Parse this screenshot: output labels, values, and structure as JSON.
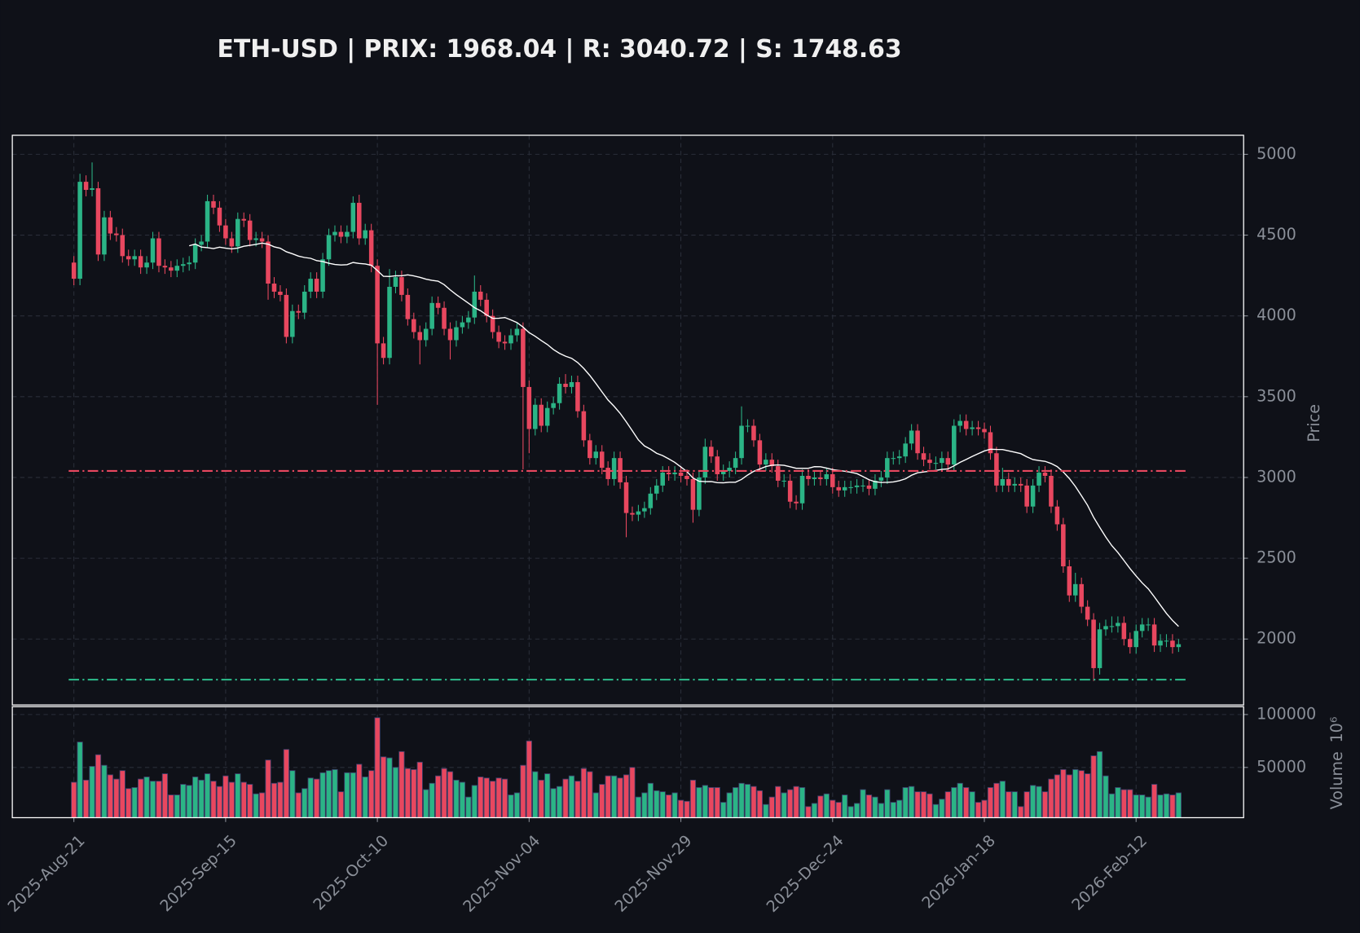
{
  "chart_data": {
    "type": "candlestick",
    "title": "ETH-USD | PRIX: 1968.04 | R: 3040.72 | S: 1748.63",
    "y_label": "Price",
    "volume_label": "Volume",
    "volume_offset": "10⁶",
    "up_color": "#2bb486",
    "down_color": "#e8475f",
    "ma_color": "#ffffff",
    "grid": true,
    "resistance": 3040.72,
    "resistance_color": "#e8475f",
    "support": 1748.63,
    "support_color": "#2bb486",
    "ylim": [
      1592,
      5118
    ],
    "yticks": [
      2000,
      2500,
      3000,
      3500,
      4000,
      4500,
      5000
    ],
    "volume_ylim": [
      2500,
      107400
    ],
    "volume_yticks": [
      50000,
      100000
    ],
    "xticks": [
      {
        "value": "2025-08-21",
        "label": "2025-Aug-21"
      },
      {
        "value": "2025-09-15",
        "label": "2025-Sep-15"
      },
      {
        "value": "2025-10-10",
        "label": "2025-Oct-10"
      },
      {
        "value": "2025-11-04",
        "label": "2025-Nov-04"
      },
      {
        "value": "2025-11-29",
        "label": "2025-Nov-29"
      },
      {
        "value": "2025-12-24",
        "label": "2025-Dec-24"
      },
      {
        "value": "2026-01-18",
        "label": "2026-Jan-18"
      },
      {
        "value": "2026-02-12",
        "label": "2026-Feb-12"
      }
    ],
    "x": [
      "2025-08-21",
      "2025-08-22",
      "2025-08-23",
      "2025-08-24",
      "2025-08-25",
      "2025-08-26",
      "2025-08-27",
      "2025-08-28",
      "2025-08-29",
      "2025-08-30",
      "2025-08-31",
      "2025-09-01",
      "2025-09-02",
      "2025-09-03",
      "2025-09-04",
      "2025-09-05",
      "2025-09-06",
      "2025-09-07",
      "2025-09-08",
      "2025-09-09",
      "2025-09-10",
      "2025-09-11",
      "2025-09-12",
      "2025-09-13",
      "2025-09-14",
      "2025-09-15",
      "2025-09-16",
      "2025-09-17",
      "2025-09-18",
      "2025-09-19",
      "2025-09-20",
      "2025-09-21",
      "2025-09-22",
      "2025-09-23",
      "2025-09-24",
      "2025-09-25",
      "2025-09-26",
      "2025-09-27",
      "2025-09-28",
      "2025-09-29",
      "2025-09-30",
      "2025-10-01",
      "2025-10-02",
      "2025-10-03",
      "2025-10-04",
      "2025-10-05",
      "2025-10-06",
      "2025-10-07",
      "2025-10-08",
      "2025-10-09",
      "2025-10-10",
      "2025-10-11",
      "2025-10-12",
      "2025-10-13",
      "2025-10-14",
      "2025-10-15",
      "2025-10-16",
      "2025-10-17",
      "2025-10-18",
      "2025-10-19",
      "2025-10-20",
      "2025-10-21",
      "2025-10-22",
      "2025-10-23",
      "2025-10-24",
      "2025-10-25",
      "2025-10-26",
      "2025-10-27",
      "2025-10-28",
      "2025-10-29",
      "2025-10-30",
      "2025-10-31",
      "2025-11-01",
      "2025-11-02",
      "2025-11-03",
      "2025-11-04",
      "2025-11-05",
      "2025-11-06",
      "2025-11-07",
      "2025-11-08",
      "2025-11-09",
      "2025-11-10",
      "2025-11-11",
      "2025-11-12",
      "2025-11-13",
      "2025-11-14",
      "2025-11-15",
      "2025-11-16",
      "2025-11-17",
      "2025-11-18",
      "2025-11-19",
      "2025-11-20",
      "2025-11-21",
      "2025-11-22",
      "2025-11-23",
      "2025-11-24",
      "2025-11-25",
      "2025-11-26",
      "2025-11-27",
      "2025-11-28",
      "2025-11-29",
      "2025-11-30",
      "2025-12-01",
      "2025-12-02",
      "2025-12-03",
      "2025-12-04",
      "2025-12-05",
      "2025-12-06",
      "2025-12-07",
      "2025-12-08",
      "2025-12-09",
      "2025-12-10",
      "2025-12-11",
      "2025-12-12",
      "2025-12-13",
      "2025-12-14",
      "2025-12-15",
      "2025-12-16",
      "2025-12-17",
      "2025-12-18",
      "2025-12-19",
      "2025-12-20",
      "2025-12-21",
      "2025-12-22",
      "2025-12-23",
      "2025-12-24",
      "2025-12-25",
      "2025-12-26",
      "2025-12-27",
      "2025-12-28",
      "2025-12-29",
      "2025-12-30",
      "2025-12-31",
      "2026-01-01",
      "2026-01-02",
      "2026-01-03",
      "2026-01-04",
      "2026-01-05",
      "2026-01-06",
      "2026-01-07",
      "2026-01-08",
      "2026-01-09",
      "2026-01-10",
      "2026-01-11",
      "2026-01-12",
      "2026-01-13",
      "2026-01-14",
      "2026-01-15",
      "2026-01-16",
      "2026-01-17",
      "2026-01-18",
      "2026-01-19",
      "2026-01-20",
      "2026-01-21",
      "2026-01-22",
      "2026-01-23",
      "2026-01-24",
      "2026-01-25",
      "2026-01-26",
      "2026-01-27",
      "2026-01-28",
      "2026-01-29",
      "2026-01-30",
      "2026-01-31",
      "2026-02-01",
      "2026-02-02",
      "2026-02-03",
      "2026-02-04",
      "2026-02-05",
      "2026-02-06",
      "2026-02-07",
      "2026-02-08",
      "2026-02-09",
      "2026-02-10",
      "2026-02-11",
      "2026-02-12",
      "2026-02-13",
      "2026-02-14",
      "2026-02-15",
      "2026-02-16",
      "2026-02-17",
      "2026-02-18",
      "2026-02-19"
    ],
    "open": [
      4330,
      4230,
      4830,
      4780,
      4790,
      4380,
      4610,
      4510,
      4500,
      4370,
      4350,
      4370,
      4300,
      4330,
      4480,
      4310,
      4300,
      4280,
      4310,
      4320,
      4330,
      4440,
      4460,
      4710,
      4670,
      4560,
      4480,
      4430,
      4600,
      4590,
      4470,
      4480,
      4460,
      4200,
      4150,
      4130,
      3870,
      4030,
      4020,
      4150,
      4230,
      4150,
      4350,
      4500,
      4520,
      4490,
      4520,
      4700,
      4480,
      4530,
      4310,
      3830,
      3740,
      4180,
      4240,
      4130,
      3980,
      3900,
      3850,
      3920,
      4080,
      4050,
      3920,
      3850,
      3930,
      3960,
      3990,
      4150,
      4100,
      4000,
      3900,
      3840,
      3830,
      3880,
      3920,
      3560,
      3300,
      3450,
      3320,
      3430,
      3460,
      3580,
      3560,
      3590,
      3410,
      3230,
      3120,
      3160,
      3060,
      2990,
      3120,
      2970,
      2780,
      2770,
      2790,
      2810,
      2900,
      2950,
      3030,
      3020,
      3030,
      3010,
      2990,
      2800,
      3000,
      3190,
      3130,
      3020,
      3040,
      3060,
      3120,
      3320,
      3320,
      3230,
      3080,
      3110,
      3070,
      2980,
      2980,
      2850,
      2840,
      3010,
      2990,
      3000,
      2990,
      3020,
      2940,
      2920,
      2940,
      2940,
      2950,
      2950,
      2930,
      2980,
      3000,
      3120,
      3120,
      3130,
      3210,
      3290,
      3150,
      3110,
      3090,
      3090,
      3120,
      3080,
      3320,
      3350,
      3300,
      3310,
      3300,
      3280,
      3150,
      2950,
      2990,
      2950,
      2960,
      2950,
      2820,
      2950,
      3030,
      3010,
      2820,
      2710,
      2450,
      2270,
      2340,
      2200,
      2120,
      1820,
      2060,
      2080,
      2080,
      2100,
      2000,
      1950,
      2050,
      2090,
      2090,
      1960,
      1990,
      1990,
      1950
    ],
    "high": [
      4370,
      4880,
      4870,
      4950,
      4830,
      4650,
      4650,
      4550,
      4540,
      4410,
      4410,
      4410,
      4370,
      4520,
      4520,
      4350,
      4340,
      4350,
      4360,
      4370,
      4480,
      4500,
      4750,
      4750,
      4710,
      4600,
      4520,
      4640,
      4640,
      4630,
      4520,
      4520,
      4500,
      4240,
      4190,
      4170,
      4070,
      4070,
      4190,
      4270,
      4270,
      4390,
      4540,
      4560,
      4560,
      4560,
      4740,
      4750,
      4570,
      4570,
      4350,
      3870,
      4290,
      4280,
      4280,
      4170,
      4020,
      3940,
      3960,
      4120,
      4120,
      4090,
      3960,
      3970,
      4000,
      4030,
      4250,
      4190,
      4140,
      4040,
      3940,
      3880,
      3920,
      3960,
      3960,
      3600,
      3490,
      3490,
      3470,
      3500,
      3620,
      3640,
      3630,
      3630,
      3450,
      3270,
      3200,
      3200,
      3100,
      3160,
      3160,
      3010,
      2820,
      2830,
      2850,
      2940,
      2990,
      3070,
      3070,
      3070,
      3070,
      3050,
      3030,
      3040,
      3240,
      3230,
      3170,
      3080,
      3100,
      3160,
      3440,
      3360,
      3360,
      3270,
      3150,
      3150,
      3110,
      3020,
      3020,
      2890,
      3050,
      3050,
      3040,
      3040,
      3060,
      3060,
      2980,
      2980,
      2980,
      2990,
      2990,
      2990,
      3020,
      3040,
      3160,
      3160,
      3170,
      3250,
      3330,
      3330,
      3190,
      3150,
      3130,
      3160,
      3160,
      3360,
      3390,
      3390,
      3350,
      3350,
      3340,
      3320,
      3190,
      3060,
      3030,
      3000,
      3000,
      2990,
      2990,
      3070,
      3070,
      3050,
      2860,
      2750,
      2490,
      2410,
      2380,
      2240,
      2160,
      2100,
      2120,
      2140,
      2140,
      2140,
      2040,
      2090,
      2130,
      2130,
      2130,
      2030,
      2030,
      2030,
      2000
    ],
    "low": [
      4190,
      4190,
      4740,
      4740,
      4340,
      4340,
      4470,
      4460,
      4330,
      4310,
      4310,
      4260,
      4260,
      4290,
      4270,
      4260,
      4240,
      4240,
      4270,
      4280,
      4290,
      4400,
      4420,
      4630,
      4520,
      4440,
      4390,
      4390,
      4550,
      4430,
      4430,
      4420,
      4100,
      4110,
      4090,
      3830,
      3830,
      3980,
      3980,
      4110,
      4110,
      4110,
      4310,
      4460,
      4450,
      4450,
      4480,
      4440,
      4440,
      4270,
      3450,
      3700,
      3700,
      4140,
      4090,
      3940,
      3860,
      3700,
      3810,
      3880,
      4010,
      3880,
      3730,
      3810,
      3890,
      3920,
      3950,
      4060,
      3960,
      3860,
      3800,
      3790,
      3790,
      3840,
      3050,
      3150,
      3260,
      3280,
      3280,
      3390,
      3420,
      3520,
      3520,
      3370,
      3190,
      3080,
      3080,
      3020,
      2950,
      2950,
      2930,
      2630,
      2730,
      2730,
      2750,
      2770,
      2860,
      2910,
      2980,
      2980,
      2970,
      2950,
      2720,
      2760,
      2960,
      3090,
      2980,
      2980,
      3000,
      3020,
      3080,
      3280,
      3190,
      3040,
      3040,
      3030,
      2940,
      2940,
      2810,
      2800,
      2800,
      2950,
      2950,
      2950,
      2950,
      2900,
      2880,
      2880,
      2900,
      2900,
      2910,
      2890,
      2890,
      2940,
      2960,
      3080,
      3080,
      3090,
      3170,
      3110,
      3070,
      3050,
      3050,
      3050,
      3040,
      3040,
      3280,
      3260,
      3260,
      3260,
      3240,
      3110,
      2910,
      2910,
      2910,
      2910,
      2910,
      2780,
      2780,
      2910,
      2970,
      2780,
      2670,
      2410,
      2230,
      2230,
      2160,
      2080,
      1740,
      1780,
      2020,
      2040,
      2040,
      1960,
      1910,
      1910,
      2010,
      2050,
      1920,
      1920,
      1950,
      1910,
      1920
    ],
    "close": [
      4230,
      4830,
      4780,
      4790,
      4380,
      4610,
      4510,
      4500,
      4370,
      4350,
      4370,
      4300,
      4330,
      4480,
      4310,
      4300,
      4280,
      4310,
      4320,
      4330,
      4440,
      4460,
      4710,
      4670,
      4560,
      4480,
      4430,
      4600,
      4590,
      4470,
      4480,
      4460,
      4200,
      4150,
      4130,
      3870,
      4030,
      4020,
      4150,
      4230,
      4150,
      4350,
      4500,
      4520,
      4490,
      4520,
      4700,
      4480,
      4530,
      4310,
      3830,
      3740,
      4180,
      4240,
      4130,
      3980,
      3900,
      3850,
      3920,
      4080,
      4050,
      3920,
      3850,
      3930,
      3960,
      3990,
      4150,
      4100,
      4000,
      3900,
      3840,
      3830,
      3880,
      3920,
      3560,
      3300,
      3450,
      3320,
      3430,
      3460,
      3580,
      3560,
      3590,
      3410,
      3230,
      3120,
      3160,
      3060,
      2990,
      3120,
      2970,
      2780,
      2770,
      2790,
      2810,
      2900,
      2950,
      3030,
      3020,
      3030,
      3010,
      2990,
      2800,
      3000,
      3190,
      3130,
      3020,
      3040,
      3060,
      3120,
      3320,
      3320,
      3230,
      3080,
      3110,
      3070,
      2980,
      2980,
      2850,
      2840,
      3010,
      2990,
      3000,
      2990,
      3020,
      2940,
      2920,
      2940,
      2940,
      2950,
      2950,
      2930,
      2980,
      3000,
      3120,
      3120,
      3130,
      3210,
      3290,
      3150,
      3110,
      3090,
      3090,
      3120,
      3080,
      3320,
      3350,
      3300,
      3310,
      3300,
      3280,
      3150,
      2950,
      2990,
      2950,
      2960,
      2950,
      2820,
      2950,
      3030,
      3010,
      2820,
      2710,
      2450,
      2270,
      2340,
      2200,
      2120,
      1820,
      2060,
      2080,
      2080,
      2100,
      2000,
      1950,
      2050,
      2090,
      2090,
      1960,
      1990,
      1990,
      1950,
      1968.04
    ],
    "volume": [
      36000,
      74000,
      38000,
      51000,
      62000,
      52000,
      43000,
      39000,
      47000,
      30000,
      31000,
      39000,
      41000,
      37000,
      37000,
      44000,
      24000,
      24000,
      34000,
      33000,
      41000,
      38000,
      44000,
      37000,
      32000,
      42000,
      36000,
      44000,
      36000,
      34000,
      25000,
      26000,
      57000,
      35000,
      36000,
      67000,
      47000,
      26000,
      30000,
      40000,
      39000,
      45000,
      47000,
      48000,
      27000,
      45000,
      45000,
      53000,
      41000,
      47000,
      97000,
      60000,
      59000,
      50000,
      65000,
      49000,
      48000,
      55000,
      29000,
      35000,
      42000,
      49000,
      46000,
      38000,
      36000,
      22000,
      33000,
      41000,
      40000,
      37000,
      40000,
      39000,
      24000,
      26000,
      52000,
      75000,
      46000,
      38000,
      44000,
      30000,
      32000,
      39000,
      42000,
      37000,
      49000,
      46000,
      26000,
      34000,
      42000,
      42000,
      40000,
      43000,
      50000,
      22000,
      26000,
      35000,
      28000,
      27000,
      24000,
      26000,
      19000,
      18000,
      38000,
      31000,
      33000,
      31000,
      31000,
      17000,
      26000,
      31000,
      35000,
      34000,
      32000,
      28000,
      15000,
      22000,
      32000,
      26000,
      29000,
      32000,
      31000,
      13000,
      16000,
      23000,
      25000,
      19000,
      17000,
      24000,
      13000,
      16000,
      29000,
      24000,
      22000,
      16000,
      29000,
      17000,
      19000,
      31000,
      32000,
      27000,
      27000,
      25000,
      15000,
      20000,
      27000,
      31000,
      35000,
      31000,
      27000,
      17000,
      19000,
      31000,
      35000,
      37000,
      27000,
      27000,
      13000,
      27000,
      33000,
      32000,
      27000,
      39000,
      43000,
      48000,
      43000,
      48000,
      47000,
      44000,
      61000,
      65000,
      42000,
      25000,
      31000,
      29000,
      29000,
      24000,
      24000,
      22000,
      34000,
      24000,
      25000,
      24000,
      26000
    ]
  }
}
